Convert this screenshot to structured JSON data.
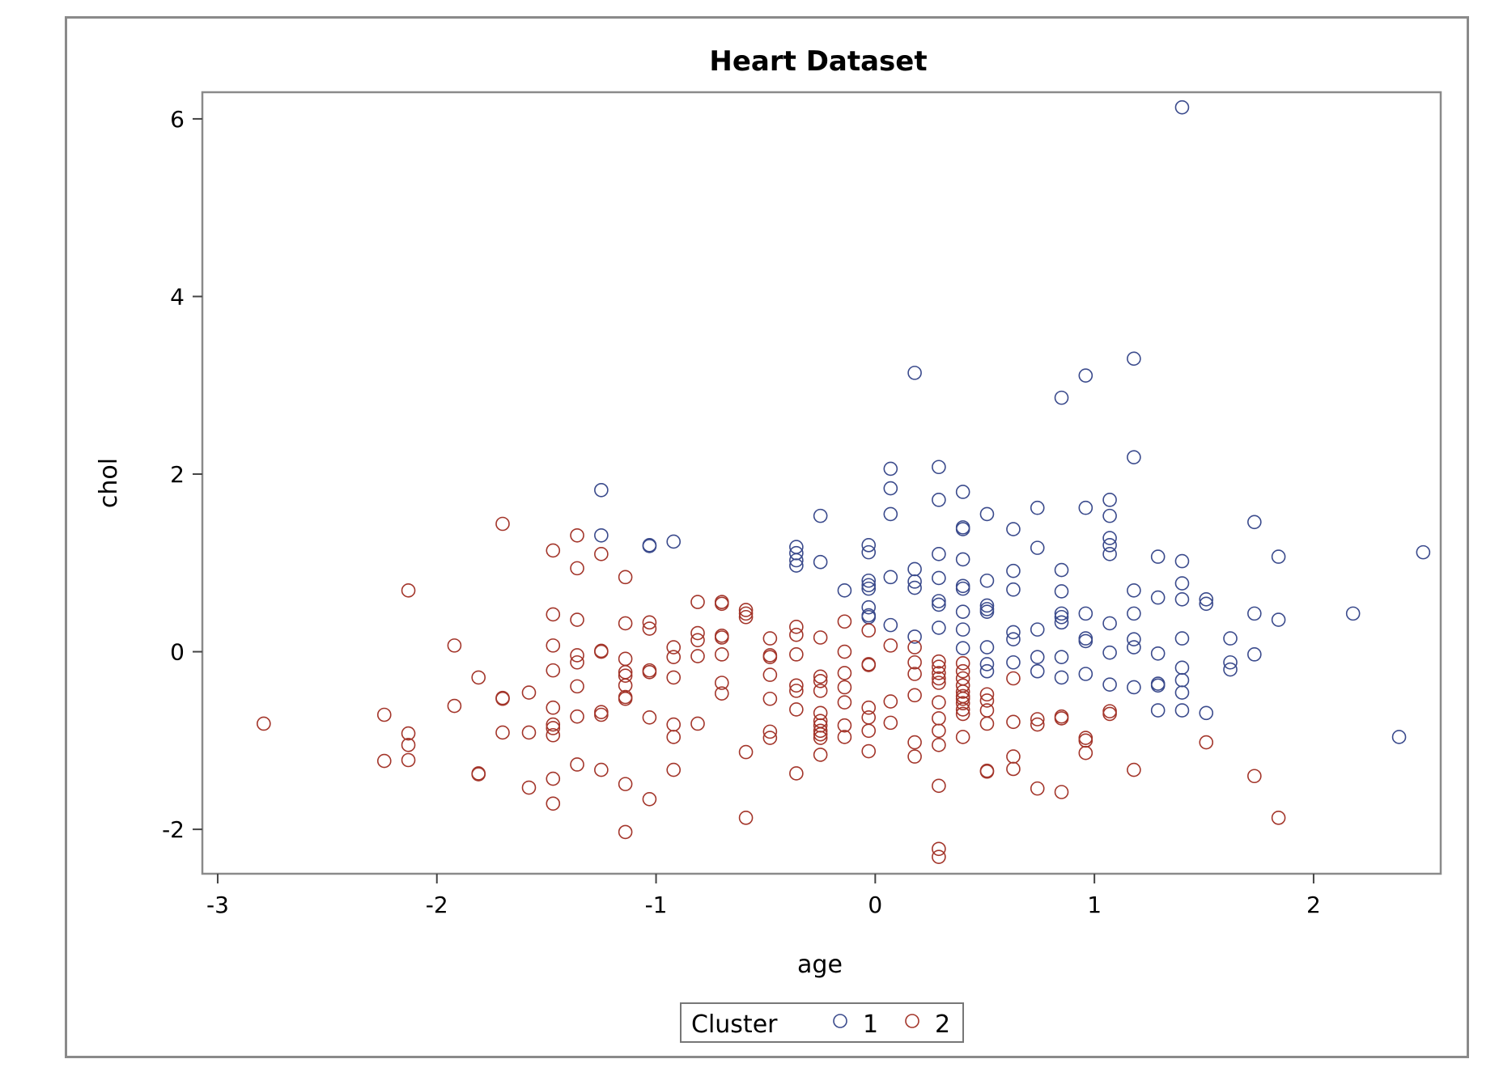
{
  "chart_data": {
    "type": "scatter",
    "title": "Heart Dataset",
    "xlabel": "age",
    "ylabel": "chol",
    "xlim": [
      -3.07,
      2.58
    ],
    "ylim": [
      -2.5,
      6.3
    ],
    "x_ticks": [
      -3,
      -2,
      -1,
      0,
      1,
      2
    ],
    "y_ticks": [
      -2,
      0,
      2,
      4,
      6
    ],
    "x_tick_labels": [
      "-3",
      "-2",
      "-1",
      "0",
      "1",
      "2"
    ],
    "y_tick_labels": [
      "-2",
      "0",
      "2",
      "4",
      "6"
    ],
    "grid": false,
    "marker": "open-circle",
    "legend": {
      "title": "Cluster",
      "position": "bottom-center"
    },
    "series": [
      {
        "name": "1",
        "color": "#3a4a8c",
        "points": [
          [
            1.4,
            6.13
          ],
          [
            0.18,
            3.14
          ],
          [
            1.18,
            3.3
          ],
          [
            0.96,
            3.11
          ],
          [
            0.85,
            2.86
          ],
          [
            1.18,
            2.19
          ],
          [
            0.07,
            2.06
          ],
          [
            0.29,
            2.08
          ],
          [
            0.07,
            1.84
          ],
          [
            -1.25,
            1.82
          ],
          [
            0.4,
            1.8
          ],
          [
            0.29,
            1.71
          ],
          [
            1.07,
            1.71
          ],
          [
            -0.25,
            1.53
          ],
          [
            0.07,
            1.55
          ],
          [
            0.51,
            1.55
          ],
          [
            0.74,
            1.62
          ],
          [
            0.96,
            1.62
          ],
          [
            1.07,
            1.53
          ],
          [
            0.4,
            1.4
          ],
          [
            0.4,
            1.38
          ],
          [
            0.63,
            1.38
          ],
          [
            1.73,
            1.46
          ],
          [
            -1.25,
            1.31
          ],
          [
            -0.92,
            1.24
          ],
          [
            -1.03,
            1.2
          ],
          [
            -1.03,
            1.19
          ],
          [
            -0.36,
            1.18
          ],
          [
            -0.03,
            1.2
          ],
          [
            1.07,
            1.28
          ],
          [
            1.07,
            1.2
          ],
          [
            1.07,
            1.1
          ],
          [
            0.74,
            1.17
          ],
          [
            -0.36,
            1.11
          ],
          [
            -0.03,
            1.12
          ],
          [
            0.29,
            1.1
          ],
          [
            0.4,
            1.04
          ],
          [
            1.29,
            1.07
          ],
          [
            1.4,
            1.02
          ],
          [
            1.84,
            1.07
          ],
          [
            2.5,
            1.12
          ],
          [
            -0.36,
            1.03
          ],
          [
            -0.36,
            0.97
          ],
          [
            -0.25,
            1.01
          ],
          [
            0.18,
            0.93
          ],
          [
            0.63,
            0.91
          ],
          [
            0.85,
            0.92
          ],
          [
            -0.03,
            0.8
          ],
          [
            -0.03,
            0.75
          ],
          [
            0.07,
            0.84
          ],
          [
            0.18,
            0.79
          ],
          [
            0.29,
            0.83
          ],
          [
            0.51,
            0.8
          ],
          [
            0.18,
            0.72
          ],
          [
            0.4,
            0.74
          ],
          [
            0.4,
            0.71
          ],
          [
            -0.14,
            0.69
          ],
          [
            -0.03,
            0.71
          ],
          [
            0.63,
            0.7
          ],
          [
            0.85,
            0.68
          ],
          [
            1.18,
            0.69
          ],
          [
            1.29,
            0.61
          ],
          [
            1.4,
            0.77
          ],
          [
            1.4,
            0.59
          ],
          [
            1.51,
            0.59
          ],
          [
            1.51,
            0.54
          ],
          [
            0.29,
            0.57
          ],
          [
            0.29,
            0.53
          ],
          [
            0.51,
            0.52
          ],
          [
            0.51,
            0.48
          ],
          [
            0.51,
            0.45
          ],
          [
            -0.03,
            0.5
          ],
          [
            -0.03,
            0.41
          ],
          [
            -0.03,
            0.39
          ],
          [
            0.4,
            0.45
          ],
          [
            0.85,
            0.43
          ],
          [
            0.85,
            0.39
          ],
          [
            0.85,
            0.33
          ],
          [
            0.96,
            0.43
          ],
          [
            1.18,
            0.43
          ],
          [
            1.73,
            0.43
          ],
          [
            1.84,
            0.36
          ],
          [
            2.18,
            0.43
          ],
          [
            0.07,
            0.3
          ],
          [
            0.29,
            0.27
          ],
          [
            0.4,
            0.25
          ],
          [
            0.63,
            0.22
          ],
          [
            0.63,
            0.14
          ],
          [
            0.74,
            0.25
          ],
          [
            1.07,
            0.32
          ],
          [
            0.18,
            0.17
          ],
          [
            0.96,
            0.15
          ],
          [
            0.96,
            0.12
          ],
          [
            1.18,
            0.14
          ],
          [
            1.18,
            0.05
          ],
          [
            1.4,
            0.15
          ],
          [
            1.62,
            0.15
          ],
          [
            0.4,
            0.04
          ],
          [
            0.51,
            0.05
          ],
          [
            1.07,
            -0.01
          ],
          [
            1.29,
            -0.02
          ],
          [
            1.73,
            -0.03
          ],
          [
            0.74,
            -0.06
          ],
          [
            0.85,
            -0.06
          ],
          [
            0.51,
            -0.14
          ],
          [
            0.63,
            -0.12
          ],
          [
            1.62,
            -0.12
          ],
          [
            1.62,
            -0.2
          ],
          [
            0.51,
            -0.22
          ],
          [
            0.74,
            -0.22
          ],
          [
            0.85,
            -0.29
          ],
          [
            0.96,
            -0.25
          ],
          [
            1.4,
            -0.18
          ],
          [
            1.4,
            -0.32
          ],
          [
            1.07,
            -0.37
          ],
          [
            1.18,
            -0.4
          ],
          [
            1.29,
            -0.36
          ],
          [
            1.29,
            -0.38
          ],
          [
            1.4,
            -0.46
          ],
          [
            1.29,
            -0.66
          ],
          [
            1.4,
            -0.66
          ],
          [
            1.51,
            -0.69
          ],
          [
            2.39,
            -0.96
          ]
        ]
      },
      {
        "name": "2",
        "color": "#a3352a",
        "points": [
          [
            -1.7,
            1.44
          ],
          [
            -1.36,
            1.31
          ],
          [
            -1.47,
            1.14
          ],
          [
            -1.25,
            1.1
          ],
          [
            -1.36,
            0.94
          ],
          [
            -1.14,
            0.84
          ],
          [
            -2.13,
            0.69
          ],
          [
            -0.81,
            0.56
          ],
          [
            -0.7,
            0.56
          ],
          [
            -0.7,
            0.54
          ],
          [
            -0.59,
            0.47
          ],
          [
            -0.59,
            0.43
          ],
          [
            -0.59,
            0.39
          ],
          [
            -1.47,
            0.42
          ],
          [
            -1.36,
            0.36
          ],
          [
            -1.14,
            0.32
          ],
          [
            -1.03,
            0.33
          ],
          [
            -1.03,
            0.26
          ],
          [
            -0.36,
            0.28
          ],
          [
            -0.14,
            0.34
          ],
          [
            -0.03,
            0.24
          ],
          [
            -0.81,
            0.21
          ],
          [
            -0.81,
            0.13
          ],
          [
            -0.7,
            0.18
          ],
          [
            -0.7,
            0.16
          ],
          [
            -0.48,
            0.15
          ],
          [
            -0.36,
            0.19
          ],
          [
            -0.25,
            0.16
          ],
          [
            -1.92,
            0.07
          ],
          [
            -1.47,
            0.07
          ],
          [
            -0.92,
            0.05
          ],
          [
            0.07,
            0.07
          ],
          [
            0.18,
            0.05
          ],
          [
            -1.25,
            0.0
          ],
          [
            -1.25,
            0.01
          ],
          [
            -0.14,
            0.0
          ],
          [
            -1.36,
            -0.04
          ],
          [
            -1.36,
            -0.12
          ],
          [
            -1.14,
            -0.08
          ],
          [
            -0.92,
            -0.06
          ],
          [
            -0.81,
            -0.05
          ],
          [
            -0.7,
            -0.03
          ],
          [
            -0.48,
            -0.04
          ],
          [
            -0.48,
            -0.06
          ],
          [
            -0.36,
            -0.03
          ],
          [
            -0.03,
            -0.14
          ],
          [
            -0.03,
            -0.15
          ],
          [
            0.18,
            -0.12
          ],
          [
            0.29,
            -0.11
          ],
          [
            0.29,
            -0.17
          ],
          [
            0.4,
            -0.13
          ],
          [
            -1.47,
            -0.21
          ],
          [
            -1.14,
            -0.23
          ],
          [
            -1.14,
            -0.27
          ],
          [
            -1.03,
            -0.21
          ],
          [
            -1.03,
            -0.23
          ],
          [
            -0.92,
            -0.29
          ],
          [
            -0.48,
            -0.26
          ],
          [
            -0.25,
            -0.28
          ],
          [
            -0.25,
            -0.33
          ],
          [
            -0.14,
            -0.24
          ],
          [
            0.18,
            -0.25
          ],
          [
            0.29,
            -0.24
          ],
          [
            0.29,
            -0.3
          ],
          [
            0.29,
            -0.35
          ],
          [
            0.4,
            -0.22
          ],
          [
            0.4,
            -0.3
          ],
          [
            0.63,
            -0.3
          ],
          [
            -1.81,
            -0.29
          ],
          [
            -1.36,
            -0.39
          ],
          [
            -1.14,
            -0.38
          ],
          [
            -0.7,
            -0.35
          ],
          [
            -0.7,
            -0.47
          ],
          [
            -0.36,
            -0.38
          ],
          [
            -0.36,
            -0.44
          ],
          [
            -0.25,
            -0.44
          ],
          [
            -0.14,
            -0.4
          ],
          [
            0.18,
            -0.49
          ],
          [
            0.4,
            -0.38
          ],
          [
            0.4,
            -0.45
          ],
          [
            0.4,
            -0.5
          ],
          [
            0.4,
            -0.53
          ],
          [
            0.4,
            -0.58
          ],
          [
            0.51,
            -0.48
          ],
          [
            0.51,
            -0.55
          ],
          [
            -1.7,
            -0.52
          ],
          [
            -1.7,
            -0.53
          ],
          [
            -1.58,
            -0.46
          ],
          [
            -1.14,
            -0.51
          ],
          [
            -1.14,
            -0.53
          ],
          [
            -0.48,
            -0.53
          ],
          [
            -0.14,
            -0.57
          ],
          [
            0.07,
            -0.56
          ],
          [
            0.29,
            -0.57
          ],
          [
            -1.92,
            -0.61
          ],
          [
            -1.47,
            -0.63
          ],
          [
            -1.25,
            -0.68
          ],
          [
            -1.25,
            -0.71
          ],
          [
            -0.36,
            -0.65
          ],
          [
            -0.25,
            -0.69
          ],
          [
            -0.03,
            -0.63
          ],
          [
            0.4,
            -0.65
          ],
          [
            0.4,
            -0.7
          ],
          [
            0.51,
            -0.66
          ],
          [
            1.07,
            -0.67
          ],
          [
            1.07,
            -0.7
          ],
          [
            -2.24,
            -0.71
          ],
          [
            -1.36,
            -0.73
          ],
          [
            -1.03,
            -0.74
          ],
          [
            -0.25,
            -0.78
          ],
          [
            -0.03,
            -0.74
          ],
          [
            0.29,
            -0.75
          ],
          [
            0.74,
            -0.76
          ],
          [
            0.85,
            -0.73
          ],
          [
            0.85,
            -0.75
          ],
          [
            -2.79,
            -0.81
          ],
          [
            -1.47,
            -0.82
          ],
          [
            -1.47,
            -0.86
          ],
          [
            -0.92,
            -0.82
          ],
          [
            -0.81,
            -0.81
          ],
          [
            -0.25,
            -0.83
          ],
          [
            -0.14,
            -0.83
          ],
          [
            0.07,
            -0.8
          ],
          [
            0.51,
            -0.81
          ],
          [
            0.63,
            -0.79
          ],
          [
            0.74,
            -0.82
          ],
          [
            -2.13,
            -0.92
          ],
          [
            -1.7,
            -0.91
          ],
          [
            -1.58,
            -0.91
          ],
          [
            -1.47,
            -0.94
          ],
          [
            -0.92,
            -0.96
          ],
          [
            -0.48,
            -0.9
          ],
          [
            -0.48,
            -0.97
          ],
          [
            -0.25,
            -0.89
          ],
          [
            -0.25,
            -0.93
          ],
          [
            -0.25,
            -0.97
          ],
          [
            -0.14,
            -0.96
          ],
          [
            -0.03,
            -0.89
          ],
          [
            0.29,
            -0.89
          ],
          [
            0.4,
            -0.96
          ],
          [
            0.96,
            -0.97
          ],
          [
            0.96,
            -1.0
          ],
          [
            -2.13,
            -1.05
          ],
          [
            0.18,
            -1.02
          ],
          [
            0.29,
            -1.05
          ],
          [
            1.51,
            -1.02
          ],
          [
            -0.59,
            -1.13
          ],
          [
            -0.03,
            -1.12
          ],
          [
            0.96,
            -1.14
          ],
          [
            -2.24,
            -1.23
          ],
          [
            -2.13,
            -1.22
          ],
          [
            -0.25,
            -1.16
          ],
          [
            0.18,
            -1.18
          ],
          [
            0.63,
            -1.18
          ],
          [
            -1.36,
            -1.27
          ],
          [
            -1.25,
            -1.33
          ],
          [
            -0.92,
            -1.33
          ],
          [
            0.51,
            -1.34
          ],
          [
            0.51,
            -1.35
          ],
          [
            0.63,
            -1.32
          ],
          [
            1.18,
            -1.33
          ],
          [
            -1.81,
            -1.37
          ],
          [
            -1.81,
            -1.38
          ],
          [
            -0.36,
            -1.37
          ],
          [
            1.73,
            -1.4
          ],
          [
            -1.47,
            -1.43
          ],
          [
            -1.14,
            -1.49
          ],
          [
            0.29,
            -1.51
          ],
          [
            -1.58,
            -1.53
          ],
          [
            0.74,
            -1.54
          ],
          [
            0.85,
            -1.58
          ],
          [
            -1.03,
            -1.66
          ],
          [
            -1.47,
            -1.71
          ],
          [
            -0.59,
            -1.87
          ],
          [
            1.84,
            -1.87
          ],
          [
            -1.14,
            -2.03
          ],
          [
            0.29,
            -2.22
          ],
          [
            0.29,
            -2.31
          ]
        ]
      }
    ]
  }
}
